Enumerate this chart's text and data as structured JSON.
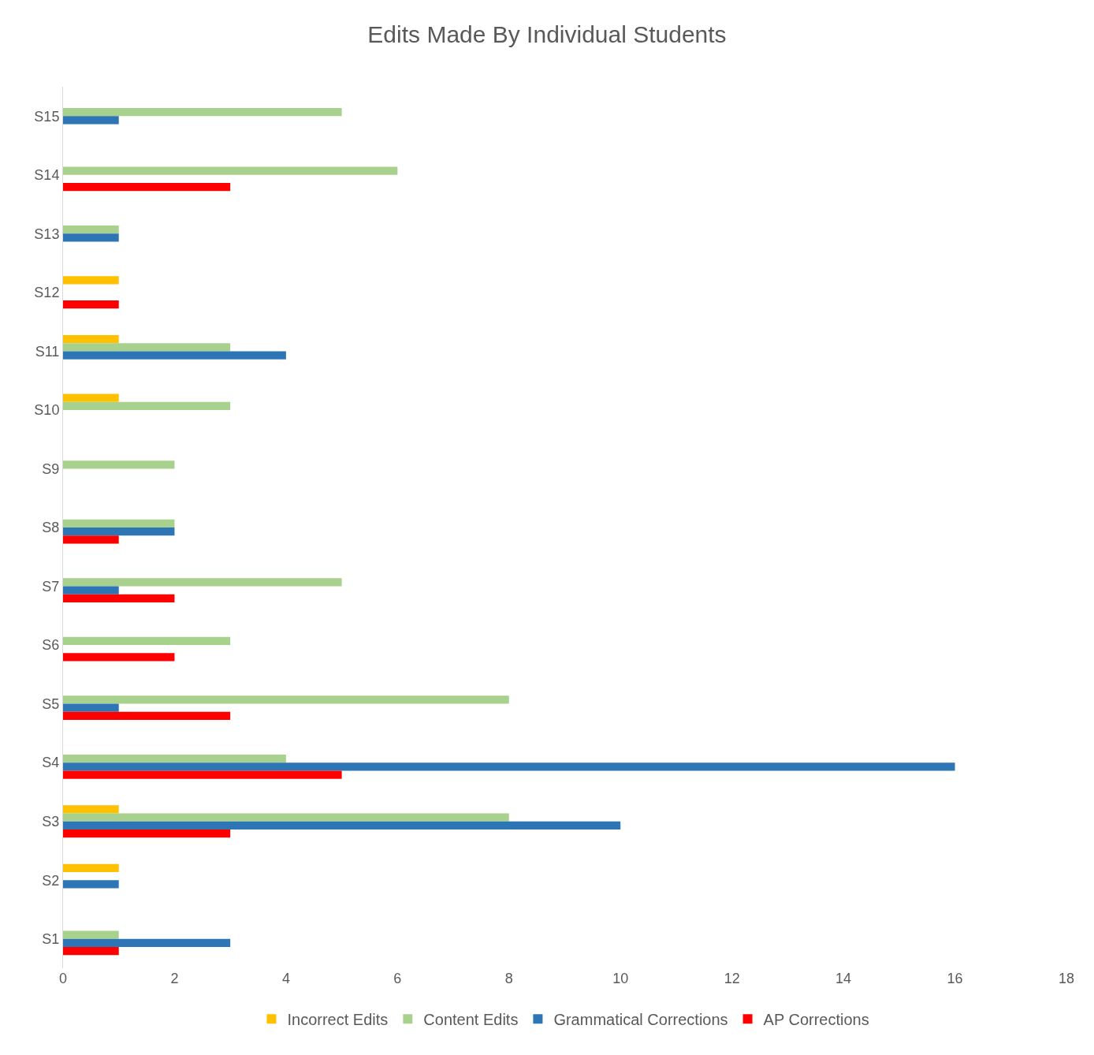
{
  "chart_data": {
    "type": "bar",
    "orientation": "horizontal",
    "title": "Edits Made By Individual Students",
    "categories": [
      "S15",
      "S14",
      "S13",
      "S12",
      "S11",
      "S10",
      "S9",
      "S8",
      "S7",
      "S6",
      "S5",
      "S4",
      "S3",
      "S2",
      "S1"
    ],
    "series": [
      {
        "name": "Incorrect Edits",
        "color": "#ffc000",
        "values": [
          0,
          0,
          0,
          1,
          1,
          1,
          0,
          0,
          0,
          0,
          0,
          0,
          1,
          1,
          0
        ]
      },
      {
        "name": "Content Edits",
        "color": "#a9d18e",
        "values": [
          5,
          6,
          1,
          0,
          3,
          3,
          2,
          2,
          5,
          3,
          8,
          4,
          8,
          0,
          1
        ]
      },
      {
        "name": "Grammatical Corrections",
        "color": "#2e75b6",
        "values": [
          1,
          0,
          1,
          0,
          4,
          0,
          0,
          2,
          1,
          0,
          1,
          16,
          10,
          1,
          3
        ]
      },
      {
        "name": "AP Corrections",
        "color": "#ff0000",
        "values": [
          0,
          3,
          0,
          1,
          0,
          0,
          0,
          1,
          2,
          2,
          3,
          5,
          3,
          0,
          1
        ]
      }
    ],
    "xlim": [
      0,
      18
    ],
    "xticks": [
      0,
      2,
      4,
      6,
      8,
      10,
      12,
      14,
      16,
      18
    ],
    "legend": "bottom"
  }
}
